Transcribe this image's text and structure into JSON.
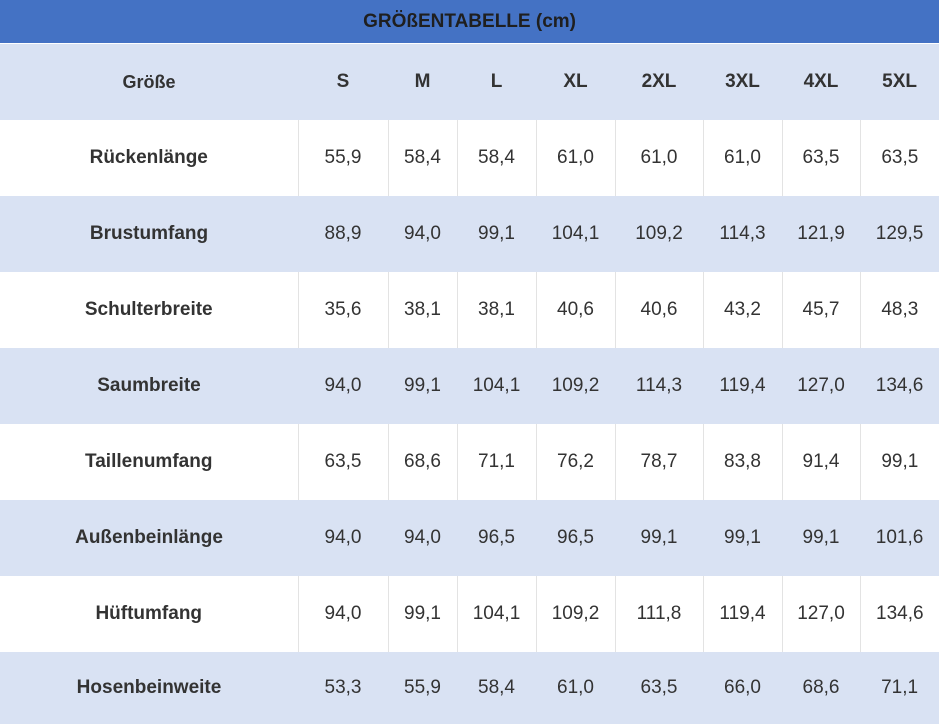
{
  "title": "GRÖßENTABELLE (cm)",
  "header": {
    "label": "Größe",
    "sizes": [
      "S",
      "M",
      "L",
      "XL",
      "2XL",
      "3XL",
      "4XL",
      "5XL"
    ]
  },
  "rows": [
    {
      "label": "Rückenlänge",
      "values": [
        "55,9",
        "58,4",
        "58,4",
        "61,0",
        "61,0",
        "61,0",
        "63,5",
        "63,5"
      ]
    },
    {
      "label": "Brustumfang",
      "values": [
        "88,9",
        "94,0",
        "99,1",
        "104,1",
        "109,2",
        "114,3",
        "121,9",
        "129,5"
      ]
    },
    {
      "label": "Schulterbreite",
      "values": [
        "35,6",
        "38,1",
        "38,1",
        "40,6",
        "40,6",
        "43,2",
        "45,7",
        "48,3"
      ]
    },
    {
      "label": "Saumbreite",
      "values": [
        "94,0",
        "99,1",
        "104,1",
        "109,2",
        "114,3",
        "119,4",
        "127,0",
        "134,6"
      ]
    },
    {
      "label": "Taillenumfang",
      "values": [
        "63,5",
        "68,6",
        "71,1",
        "76,2",
        "78,7",
        "83,8",
        "91,4",
        "99,1"
      ]
    },
    {
      "label": "Außenbeinlänge",
      "values": [
        "94,0",
        "94,0",
        "96,5",
        "96,5",
        "99,1",
        "99,1",
        "99,1",
        "101,6"
      ]
    },
    {
      "label": "Hüftumfang",
      "values": [
        "94,0",
        "99,1",
        "104,1",
        "109,2",
        "111,8",
        "119,4",
        "127,0",
        "134,6"
      ]
    },
    {
      "label": "Hosenbeinweite",
      "values": [
        "53,3",
        "55,9",
        "58,4",
        "61,0",
        "63,5",
        "66,0",
        "68,6",
        "71,1"
      ]
    }
  ],
  "colors": {
    "title_background": "#4472c4",
    "band_background": "#d9e2f3",
    "row_background": "#ffffff",
    "text": "#333333"
  }
}
